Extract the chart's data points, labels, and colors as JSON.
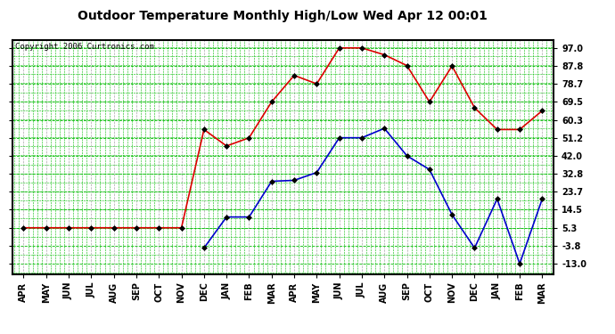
{
  "title": "Outdoor Temperature Monthly High/Low Wed Apr 12 00:01",
  "copyright": "Copyright 2006 Curtronics.com",
  "x_labels": [
    "APR",
    "MAY",
    "JUN",
    "JUL",
    "AUG",
    "SEP",
    "OCT",
    "NOV",
    "DEC",
    "JAN",
    "FEB",
    "MAR",
    "APR",
    "MAY",
    "JUN",
    "JUL",
    "AUG",
    "SEP",
    "OCT",
    "NOV",
    "DEC",
    "JAN",
    "FEB",
    "MAR"
  ],
  "high_temps": [
    5.3,
    5.3,
    5.3,
    5.3,
    5.3,
    5.3,
    5.3,
    5.3,
    55.4,
    47.0,
    51.2,
    69.5,
    83.0,
    78.7,
    97.0,
    97.0,
    93.5,
    88.0,
    69.5,
    87.8,
    66.5,
    55.4,
    55.4,
    65.0
  ],
  "low_temps": [
    null,
    null,
    null,
    null,
    null,
    null,
    null,
    null,
    -5.0,
    10.8,
    10.8,
    29.0,
    29.5,
    33.5,
    51.2,
    51.2,
    56.0,
    42.0,
    35.0,
    12.0,
    -5.0,
    20.0,
    -13.0,
    20.0
  ],
  "y_ticks": [
    -13.0,
    -3.8,
    5.3,
    14.5,
    23.7,
    32.8,
    42.0,
    51.2,
    60.3,
    69.5,
    78.7,
    87.8,
    97.0
  ],
  "ylim": [
    -18.2,
    101.0
  ],
  "high_color": "#dd0000",
  "low_color": "#0000cc",
  "grid_color": "#00bb00",
  "bg_color": "#ffffff",
  "title_color": "#000000",
  "marker": "D",
  "marker_color": "#000000",
  "marker_size": 3,
  "line_width": 1.2,
  "title_fontsize": 10,
  "tick_fontsize": 7
}
